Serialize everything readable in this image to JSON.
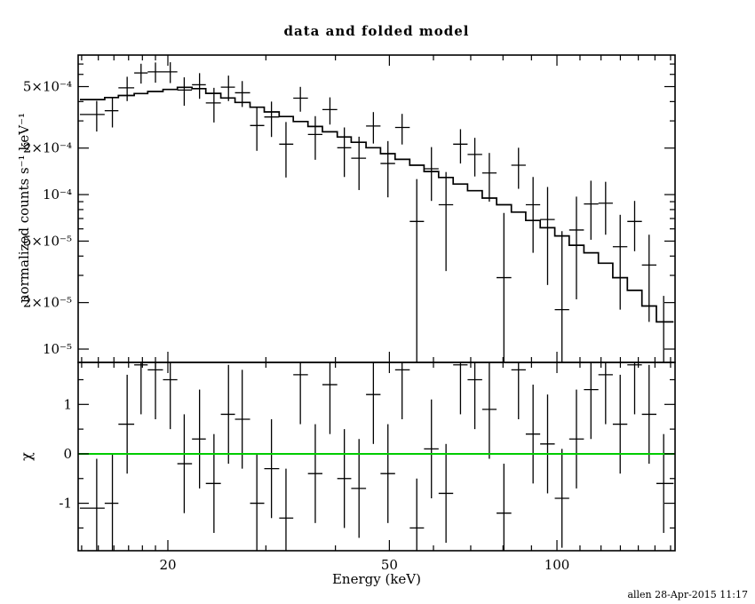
{
  "title": "data and folded model",
  "timestamp": "allen 28-Apr-2015 11:17",
  "chart_data": {
    "type": "line",
    "title": "data and folded model",
    "xlabel": "Energy (keV)",
    "ylabel_top": "normalized counts s⁻¹ keV⁻¹",
    "ylabel_bottom": "χ",
    "x_scale": "log",
    "y_scale_top": "log",
    "y_scale_bottom": "linear",
    "grid": false,
    "legend": false,
    "data_color": "#000000",
    "zero_line_color": "#00cc00",
    "xlim": [
      13.8,
      163
    ],
    "ylim_top": [
      8.2e-06,
      0.0008
    ],
    "ylim_bottom": [
      -1.96,
      1.85
    ],
    "x_major_ticks": [
      {
        "value": 20,
        "label": "20"
      },
      {
        "value": 50,
        "label": "50"
      },
      {
        "value": 100,
        "label": "100"
      }
    ],
    "x_minor_ticks": [
      14,
      15,
      16,
      17,
      18,
      19,
      30,
      40,
      60,
      70,
      80,
      90,
      110,
      120,
      130,
      140,
      150,
      160
    ],
    "y_major_ticks_top": [
      {
        "value": 1e-05,
        "label": "10⁻⁵"
      },
      {
        "value": 2e-05,
        "label": "2×10⁻⁵"
      },
      {
        "value": 5e-05,
        "label": "5×10⁻⁵"
      },
      {
        "value": 0.0001,
        "label": "10⁻⁴"
      },
      {
        "value": 0.0002,
        "label": "2×10⁻⁴"
      },
      {
        "value": 0.0005,
        "label": "5×10⁻⁴"
      }
    ],
    "y_minor_ticks_top": [
      3e-05,
      4e-05,
      6e-05,
      7e-05,
      8e-05,
      9e-05,
      0.0003,
      0.0004,
      0.0006,
      0.0007
    ],
    "y_major_ticks_bottom": [
      {
        "value": -1,
        "label": "-1"
      },
      {
        "value": 0,
        "label": "0"
      },
      {
        "value": 1,
        "label": "1"
      }
    ],
    "y_minor_ticks_bottom": [
      -1.5,
      -0.5,
      0.5,
      1.5
    ],
    "chi_err": 1,
    "model": {
      "bin_edges": [
        13.9,
        15.4,
        16.3,
        17.4,
        18.4,
        19.6,
        20.8,
        22.1,
        23.4,
        24.9,
        26.4,
        28.1,
        29.8,
        31.7,
        33.6,
        35.7,
        37.9,
        40.3,
        42.7,
        45.4,
        48.2,
        51.2,
        54.4,
        57.7,
        61.3,
        65.1,
        69.1,
        73.4,
        77.9,
        82.8,
        87.9,
        93.3,
        99.1,
        105.2,
        111.8,
        118.7,
        126.0,
        133.8,
        142.1,
        150.9,
        162.0
      ],
      "values": [
        0.000412,
        0.000425,
        0.000438,
        0.000451,
        0.000465,
        0.000479,
        0.000495,
        0.000485,
        0.000452,
        0.000422,
        0.000395,
        0.000368,
        0.000343,
        0.00032,
        0.000297,
        0.000276,
        0.000255,
        0.000236,
        0.000218,
        0.000201,
        0.000184,
        0.000169,
        0.000155,
        0.000141,
        0.000129,
        0.000117,
        0.000106,
        9.5e-05,
        8.6e-05,
        7.7e-05,
        6.8e-05,
        6.1e-05,
        5.4e-05,
        4.7e-05,
        4.2e-05,
        3.6e-05,
        2.9e-05,
        2.4e-05,
        1.9e-05,
        1.5e-05
      ]
    },
    "points": [
      {
        "e": 14.9,
        "elo": 13.9,
        "ehi": 15.4,
        "y": 0.00033,
        "yerr": 7.4e-05,
        "chi": -1.1
      },
      {
        "e": 15.9,
        "elo": 15.4,
        "ehi": 16.3,
        "y": 0.000349,
        "yerr": 7.7e-05,
        "chi": -1.0
      },
      {
        "e": 16.9,
        "elo": 16.3,
        "ehi": 17.4,
        "y": 0.000491,
        "yerr": 8.8e-05,
        "chi": 0.6
      },
      {
        "e": 17.9,
        "elo": 17.4,
        "ehi": 18.4,
        "y": 0.000613,
        "yerr": 9e-05,
        "chi": 1.8
      },
      {
        "e": 19.0,
        "elo": 18.4,
        "ehi": 19.6,
        "y": 0.000623,
        "yerr": 9.3e-05,
        "chi": 1.7
      },
      {
        "e": 20.2,
        "elo": 19.6,
        "ehi": 20.8,
        "y": 0.000623,
        "yerr": 9.6e-05,
        "chi": 1.5
      },
      {
        "e": 21.4,
        "elo": 20.8,
        "ehi": 22.1,
        "y": 0.000475,
        "yerr": 9.9e-05,
        "chi": -0.2
      },
      {
        "e": 22.8,
        "elo": 22.1,
        "ehi": 23.4,
        "y": 0.000514,
        "yerr": 9.7e-05,
        "chi": 0.3
      },
      {
        "e": 24.2,
        "elo": 23.4,
        "ehi": 24.9,
        "y": 0.000392,
        "yerr": 9.9e-05,
        "chi": -0.6
      },
      {
        "e": 25.7,
        "elo": 24.9,
        "ehi": 26.4,
        "y": 0.000496,
        "yerr": 9.3e-05,
        "chi": 0.8
      },
      {
        "e": 27.2,
        "elo": 26.4,
        "ehi": 28.1,
        "y": 0.000456,
        "yerr": 8.7e-05,
        "chi": 0.7
      },
      {
        "e": 28.9,
        "elo": 28.1,
        "ehi": 29.8,
        "y": 0.00028,
        "yerr": 8.8e-05,
        "chi": -1.0
      },
      {
        "e": 30.7,
        "elo": 29.8,
        "ehi": 31.7,
        "y": 0.000318,
        "yerr": 8.2e-05,
        "chi": -0.3
      },
      {
        "e": 32.6,
        "elo": 31.7,
        "ehi": 33.6,
        "y": 0.000212,
        "yerr": 8.3e-05,
        "chi": -1.3
      },
      {
        "e": 34.6,
        "elo": 33.6,
        "ehi": 35.7,
        "y": 0.000421,
        "yerr": 7.7e-05,
        "chi": 1.6
      },
      {
        "e": 36.8,
        "elo": 35.7,
        "ehi": 37.9,
        "y": 0.000245,
        "yerr": 7.7e-05,
        "chi": -0.4
      },
      {
        "e": 39.1,
        "elo": 37.9,
        "ehi": 40.3,
        "y": 0.000355,
        "yerr": 7.1e-05,
        "chi": 1.4
      },
      {
        "e": 41.5,
        "elo": 40.3,
        "ehi": 42.7,
        "y": 0.000201,
        "yerr": 7.1e-05,
        "chi": -0.5
      },
      {
        "e": 44.1,
        "elo": 42.7,
        "ehi": 45.4,
        "y": 0.000172,
        "yerr": 6.5e-05,
        "chi": -0.7
      },
      {
        "e": 46.8,
        "elo": 45.4,
        "ehi": 48.2,
        "y": 0.000278,
        "yerr": 6.4e-05,
        "chi": 1.2
      },
      {
        "e": 49.7,
        "elo": 48.2,
        "ehi": 51.2,
        "y": 0.000159,
        "yerr": 6.3e-05,
        "chi": -0.4
      },
      {
        "e": 52.7,
        "elo": 51.2,
        "ehi": 54.4,
        "y": 0.000272,
        "yerr": 6.1e-05,
        "chi": 1.7
      },
      {
        "e": 56.0,
        "elo": 54.4,
        "ehi": 57.7,
        "y": 6.7e-05,
        "yerr": 5.9e-05,
        "chi": -1.5
      },
      {
        "e": 59.5,
        "elo": 57.7,
        "ehi": 61.3,
        "y": 0.000147,
        "yerr": 5.6e-05,
        "chi": 0.1
      },
      {
        "e": 63.2,
        "elo": 61.3,
        "ehi": 65.1,
        "y": 8.6e-05,
        "yerr": 5.4e-05,
        "chi": -0.8
      },
      {
        "e": 67.1,
        "elo": 65.1,
        "ehi": 69.1,
        "y": 0.000212,
        "yerr": 5.3e-05,
        "chi": 1.8
      },
      {
        "e": 71.2,
        "elo": 69.1,
        "ehi": 73.4,
        "y": 0.000182,
        "yerr": 5.1e-05,
        "chi": 1.5
      },
      {
        "e": 75.6,
        "elo": 73.4,
        "ehi": 77.9,
        "y": 0.000138,
        "yerr": 4.8e-05,
        "chi": 0.9
      },
      {
        "e": 80.3,
        "elo": 77.9,
        "ehi": 82.8,
        "y": 2.9e-05,
        "yerr": 4.7e-05,
        "chi": -1.2
      },
      {
        "e": 85.3,
        "elo": 82.8,
        "ehi": 87.9,
        "y": 0.000155,
        "yerr": 4.6e-05,
        "chi": 1.7
      },
      {
        "e": 90.6,
        "elo": 87.9,
        "ehi": 93.3,
        "y": 8.6e-05,
        "yerr": 4.4e-05,
        "chi": 0.4
      },
      {
        "e": 96.2,
        "elo": 93.3,
        "ehi": 99.1,
        "y": 6.9e-05,
        "yerr": 4.3e-05,
        "chi": 0.2
      },
      {
        "e": 102.1,
        "elo": 99.1,
        "ehi": 105.2,
        "y": 1.8e-05,
        "yerr": 4e-05,
        "chi": -0.9
      },
      {
        "e": 108.4,
        "elo": 105.2,
        "ehi": 111.8,
        "y": 5.9e-05,
        "yerr": 3.8e-05,
        "chi": 0.3
      },
      {
        "e": 115.1,
        "elo": 111.8,
        "ehi": 118.7,
        "y": 8.7e-05,
        "yerr": 3.6e-05,
        "chi": 1.3
      },
      {
        "e": 122.3,
        "elo": 118.7,
        "ehi": 126.0,
        "y": 8.8e-05,
        "yerr": 3.3e-05,
        "chi": 1.6
      },
      {
        "e": 129.9,
        "elo": 126.0,
        "ehi": 133.8,
        "y": 4.6e-05,
        "yerr": 2.8e-05,
        "chi": 0.6
      },
      {
        "e": 137.9,
        "elo": 133.8,
        "ehi": 142.1,
        "y": 6.7e-05,
        "yerr": 2.4e-05,
        "chi": 1.8
      },
      {
        "e": 146.4,
        "elo": 142.1,
        "ehi": 150.9,
        "y": 3.5e-05,
        "yerr": 2e-05,
        "chi": 0.8
      },
      {
        "e": 155.5,
        "elo": 150.9,
        "ehi": 162.0,
        "y": 5.1e-06,
        "yerr": 1.7e-05,
        "chi": -0.6
      }
    ]
  }
}
